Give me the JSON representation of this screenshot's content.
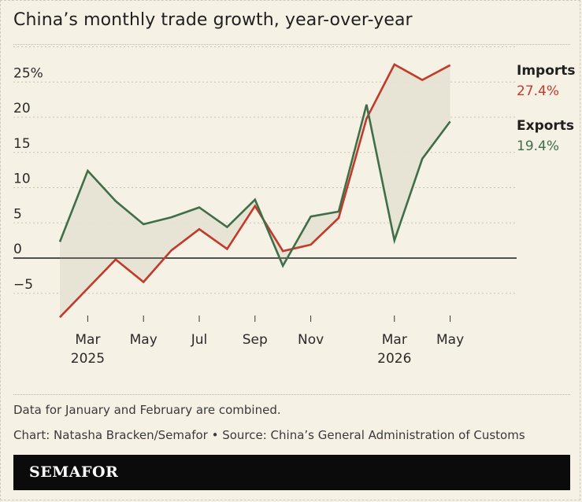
{
  "title": "China’s monthly trade growth, year-over-year",
  "note": "Data for January and February are combined.",
  "credit": "Chart: Natasha Bracken/Semafor • Source: China’s General Administration of Customs",
  "brand": "SEMAFOR",
  "colors": {
    "background": "#f5f1e4",
    "imports": "#c23a2b",
    "exports": "#3e6f48",
    "gap_fill": "#e6e1d4",
    "label_text": "#1f1f1f"
  },
  "chart_data": {
    "type": "line",
    "x": [
      "Jan-Feb 2025",
      "Mar 2025",
      "Apr 2025",
      "May 2025",
      "Jun 2025",
      "Jul 2025",
      "Aug 2025",
      "Sep 2025",
      "Oct 2025",
      "Nov 2025",
      "Dec 2025",
      "Jan-Feb 2026",
      "Mar 2026",
      "Apr 2026",
      "May 2026"
    ],
    "x_ticks": [
      {
        "label": "Mar",
        "year": "2025",
        "index": 1
      },
      {
        "label": "May",
        "year": "",
        "index": 3
      },
      {
        "label": "Jul",
        "year": "",
        "index": 5
      },
      {
        "label": "Sep",
        "year": "",
        "index": 7
      },
      {
        "label": "Nov",
        "year": "",
        "index": 9
      },
      {
        "label": "Mar",
        "year": "2026",
        "index": 12
      },
      {
        "label": "May",
        "year": "",
        "index": 14
      }
    ],
    "y_ticks": [
      {
        "value": 25,
        "label": "25%"
      },
      {
        "value": 20,
        "label": "20"
      },
      {
        "value": 15,
        "label": "15"
      },
      {
        "value": 10,
        "label": "10"
      },
      {
        "value": 5,
        "label": "5"
      },
      {
        "value": 0,
        "label": "0"
      },
      {
        "value": -5,
        "label": "−5"
      }
    ],
    "ylim": [
      -8.5,
      27.6
    ],
    "grid": true,
    "series": [
      {
        "name": "Imports",
        "end_label": "27.4%",
        "color": "#c23a2b",
        "values": [
          -8.4,
          -4.3,
          -0.2,
          -3.4,
          1.1,
          4.1,
          1.3,
          7.4,
          1.0,
          1.9,
          5.7,
          19.8,
          27.5,
          25.3,
          27.4
        ]
      },
      {
        "name": "Exports",
        "end_label": "19.4%",
        "color": "#3e6f48",
        "values": [
          2.3,
          12.4,
          8.1,
          4.8,
          5.8,
          7.2,
          4.4,
          8.3,
          -1.1,
          5.9,
          6.6,
          21.8,
          2.5,
          14.1,
          19.4
        ]
      }
    ]
  }
}
